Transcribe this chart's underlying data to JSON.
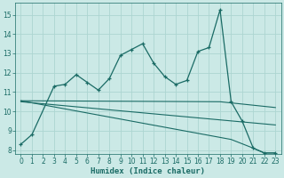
{
  "xlabel": "Humidex (Indice chaleur)",
  "bg_color": "#cbe9e6",
  "grid_color": "#add5d1",
  "line_color": "#1a6b65",
  "xlim": [
    -0.5,
    23.5
  ],
  "ylim": [
    7.8,
    15.6
  ],
  "yticks": [
    8,
    9,
    10,
    11,
    12,
    13,
    14,
    15
  ],
  "xticks": [
    0,
    1,
    2,
    3,
    4,
    5,
    6,
    7,
    8,
    9,
    10,
    11,
    12,
    13,
    14,
    15,
    16,
    17,
    18,
    19,
    20,
    21,
    22,
    23
  ],
  "series1_x": [
    0,
    1,
    3,
    4,
    5,
    6,
    7,
    8,
    9,
    10,
    11,
    12,
    13,
    14,
    15,
    16,
    17,
    18,
    19,
    20,
    21,
    22,
    23
  ],
  "series1_y": [
    8.3,
    8.8,
    11.3,
    11.4,
    11.9,
    11.5,
    11.1,
    11.7,
    12.9,
    13.2,
    13.5,
    12.5,
    11.8,
    11.4,
    11.6,
    13.1,
    13.3,
    15.25,
    10.5,
    9.5,
    8.1,
    7.85,
    7.85
  ],
  "series2_x": [
    0,
    18,
    23
  ],
  "series2_y": [
    10.55,
    10.5,
    10.2
  ],
  "series3_x": [
    0,
    23
  ],
  "series3_y": [
    10.5,
    9.3
  ],
  "series4_x": [
    0,
    19,
    21,
    22,
    23
  ],
  "series4_y": [
    10.55,
    8.55,
    8.1,
    7.85,
    7.85
  ]
}
